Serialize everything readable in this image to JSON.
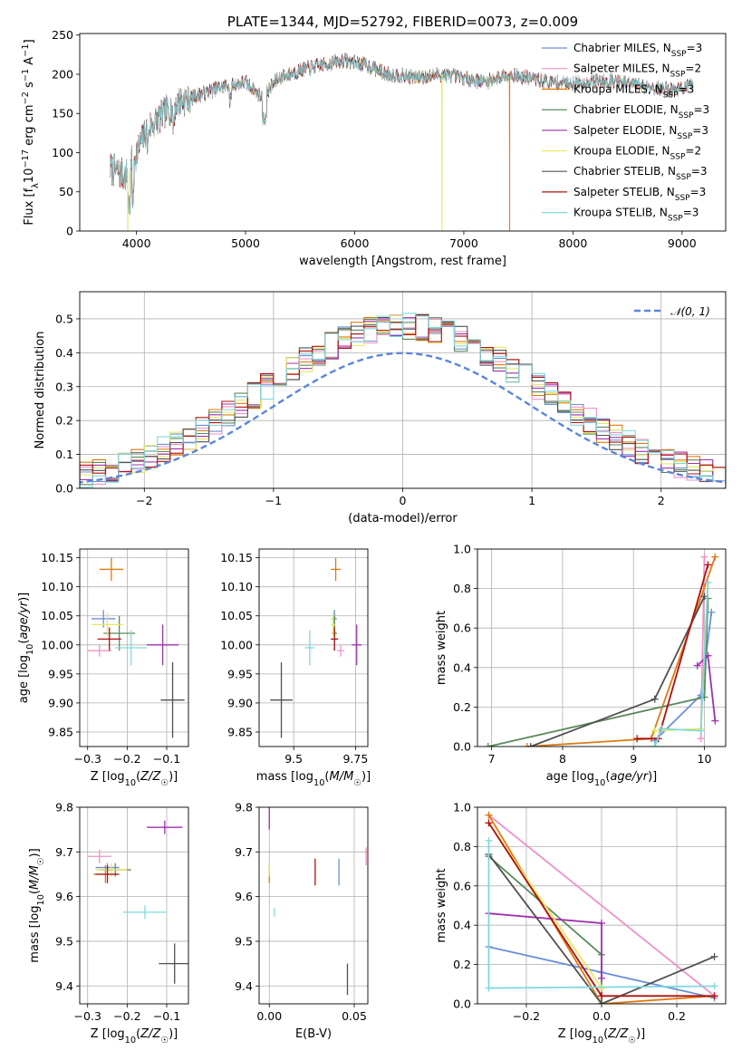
{
  "figure": {
    "title": "PLATE=1344, MJD=52792, FIBERID=0073, z=0.009"
  },
  "colors": {
    "model": [
      "#6a8fd8",
      "#f090c8",
      "#e07a10",
      "#5b8a5b",
      "#a030b0",
      "#e8e860",
      "#505050",
      "#b01010",
      "#80d8dc"
    ]
  },
  "chart_data": [
    {
      "id": "spectrum",
      "type": "line",
      "title": "PLATE=1344, MJD=52792, FIBERID=0073, z=0.009",
      "xlabel": "wavelength [Angstrom, rest frame]",
      "ylabel": "Flux [f_λ 10^-17 erg cm^-2 s^-1 A^-1]",
      "xlim": [
        3480,
        9400
      ],
      "ylim": [
        0,
        252
      ],
      "xticks": [
        4000,
        5000,
        6000,
        7000,
        8000,
        9000
      ],
      "yticks": [
        0,
        50,
        100,
        150,
        200,
        250
      ],
      "legend_position": "top-right",
      "series": [
        {
          "name": "Chabrier MILES, N_SSP=3"
        },
        {
          "name": "Salpeter MILES, N_SSP=2"
        },
        {
          "name": "Kroupa MILES, N_SSP=3"
        },
        {
          "name": "Chabrier ELODIE, N_SSP=3"
        },
        {
          "name": "Salpeter ELODIE, N_SSP=3"
        },
        {
          "name": "Kroupa ELODIE, N_SSP=2"
        },
        {
          "name": "Chabrier STELIB, N_SSP=3"
        },
        {
          "name": "Salpeter STELIB, N_SSP=3"
        },
        {
          "name": "Kroupa STELIB, N_SSP=3"
        }
      ],
      "continuum": {
        "x": [
          3760,
          3900,
          4000,
          4100,
          4250,
          4400,
          4600,
          4800,
          5000,
          5150,
          5300,
          5500,
          5700,
          5900,
          6100,
          6300,
          6560,
          6800,
          7000,
          7200,
          7400,
          7600,
          7800,
          8000,
          8300,
          8600,
          8900,
          9100
        ],
        "y": [
          80,
          70,
          100,
          130,
          150,
          165,
          175,
          185,
          190,
          170,
          195,
          205,
          212,
          218,
          212,
          200,
          196,
          200,
          195,
          190,
          200,
          195,
          190,
          188,
          192,
          186,
          180,
          185
        ]
      },
      "dropouts": [
        {
          "x": 3920,
          "series": 5
        },
        {
          "x": 6800,
          "series": 5
        },
        {
          "x": 7420,
          "series": 2
        }
      ]
    },
    {
      "id": "residuals",
      "type": "histogram",
      "xlabel": "(data-model)/error",
      "ylabel": "Normed distribution",
      "xlim": [
        -2.5,
        2.5
      ],
      "ylim": [
        0,
        0.58
      ],
      "xticks": [
        -2,
        -1,
        0,
        1,
        2
      ],
      "yticks": [
        0.0,
        0.1,
        0.2,
        0.3,
        0.4,
        0.5
      ],
      "grid": true,
      "legend_position": "top-right",
      "reference_curve": {
        "name": "N(0,1)",
        "legend_label": "𝒩(0, 1)",
        "mean": 0,
        "sigma": 1
      },
      "bin_width": 0.1
    },
    {
      "id": "age-vs-Z",
      "type": "errorbar",
      "xlabel": "Z [log10(Z/Z☉)]",
      "ylabel": "age [log10(age/yr)]",
      "xlim": [
        -0.32,
        -0.045
      ],
      "ylim": [
        9.825,
        10.165
      ],
      "xticks": [
        -0.3,
        -0.2,
        -0.1
      ],
      "yticks": [
        9.85,
        9.9,
        9.95,
        10.0,
        10.05,
        10.1,
        10.15
      ],
      "grid": true,
      "points": [
        {
          "x": -0.26,
          "y": 10.045,
          "xerr": 0.03,
          "yerr": 0.015,
          "series": 0
        },
        {
          "x": -0.27,
          "y": 9.99,
          "xerr": 0.03,
          "yerr": 0.01,
          "series": 1
        },
        {
          "x": -0.24,
          "y": 10.13,
          "xerr": 0.03,
          "yerr": 0.02,
          "series": 2
        },
        {
          "x": -0.22,
          "y": 10.02,
          "xerr": 0.04,
          "yerr": 0.03,
          "series": 3
        },
        {
          "x": -0.11,
          "y": 10.0,
          "xerr": 0.04,
          "yerr": 0.035,
          "series": 4
        },
        {
          "x": -0.25,
          "y": 10.035,
          "xerr": 0.04,
          "yerr": 0.02,
          "series": 5
        },
        {
          "x": -0.085,
          "y": 9.905,
          "xerr": 0.03,
          "yerr": 0.065,
          "series": 6
        },
        {
          "x": -0.245,
          "y": 10.01,
          "xerr": 0.03,
          "yerr": 0.02,
          "series": 7
        },
        {
          "x": -0.19,
          "y": 9.995,
          "xerr": 0.04,
          "yerr": 0.03,
          "series": 8
        }
      ]
    },
    {
      "id": "age-vs-mass",
      "type": "errorbar",
      "xlabel": "mass [log10(M/M☉)]",
      "ylabel": "",
      "xlim": [
        9.36,
        9.8
      ],
      "ylim": [
        9.825,
        10.165
      ],
      "xticks": [
        9.5,
        9.75
      ],
      "yticks": [
        9.85,
        9.9,
        9.95,
        10.0,
        10.05,
        10.1,
        10.15
      ],
      "grid": true,
      "points": [
        {
          "x": 9.665,
          "y": 10.045,
          "xerr": 0.01,
          "yerr": 0.015,
          "series": 0
        },
        {
          "x": 9.69,
          "y": 9.99,
          "xerr": 0.015,
          "yerr": 0.01,
          "series": 1
        },
        {
          "x": 9.67,
          "y": 10.13,
          "xerr": 0.02,
          "yerr": 0.02,
          "series": 2
        },
        {
          "x": 9.665,
          "y": 10.02,
          "xerr": 0.01,
          "yerr": 0.03,
          "series": 3
        },
        {
          "x": 9.755,
          "y": 10.0,
          "xerr": 0.02,
          "yerr": 0.035,
          "series": 4
        },
        {
          "x": 9.66,
          "y": 10.035,
          "xerr": 0.01,
          "yerr": 0.02,
          "series": 5
        },
        {
          "x": 9.45,
          "y": 9.905,
          "xerr": 0.045,
          "yerr": 0.065,
          "series": 6
        },
        {
          "x": 9.665,
          "y": 10.01,
          "xerr": 0.015,
          "yerr": 0.02,
          "series": 7
        },
        {
          "x": 9.565,
          "y": 9.995,
          "xerr": 0.02,
          "yerr": 0.03,
          "series": 8
        }
      ]
    },
    {
      "id": "mass-weight-vs-age",
      "type": "line",
      "xlabel": "age [log10(age/yr)]",
      "ylabel": "mass weight",
      "xlim": [
        6.8,
        10.3
      ],
      "ylim": [
        0,
        1.0
      ],
      "xticks": [
        7,
        8,
        9,
        10
      ],
      "yticks": [
        0.0,
        0.2,
        0.4,
        0.6,
        0.8,
        1.0
      ],
      "grid": true,
      "series": [
        {
          "series": 0,
          "x": [
            9.3,
            9.95,
            10.1
          ],
          "y": [
            0.03,
            0.26,
            0.68
          ]
        },
        {
          "series": 1,
          "x": [
            9.95,
            10.0
          ],
          "y": [
            0.04,
            0.96
          ]
        },
        {
          "series": 2,
          "x": [
            7.5,
            9.25,
            10.15
          ],
          "y": [
            0.0,
            0.04,
            0.96
          ]
        },
        {
          "series": 3,
          "x": [
            6.95,
            10.0,
            10.05
          ],
          "y": [
            0.0,
            0.25,
            0.75
          ]
        },
        {
          "series": 4,
          "x": [
            9.9,
            10.05,
            10.15
          ],
          "y": [
            0.41,
            0.46,
            0.13
          ]
        },
        {
          "series": 5,
          "x": [
            9.3,
            9.95,
            10.05
          ],
          "y": [
            0.08,
            0.09,
            0.83
          ]
        },
        {
          "series": 6,
          "x": [
            7.55,
            9.3,
            10.0
          ],
          "y": [
            0.0,
            0.24,
            0.76
          ]
        },
        {
          "series": 7,
          "x": [
            9.05,
            9.35,
            10.05
          ],
          "y": [
            0.04,
            0.04,
            0.92
          ]
        },
        {
          "series": 8,
          "x": [
            9.3,
            9.4,
            9.95,
            10.05
          ],
          "y": [
            0.0,
            0.09,
            0.08,
            0.83
          ]
        }
      ]
    },
    {
      "id": "mass-vs-Z",
      "type": "errorbar",
      "xlabel": "Z [log10(Z/Z☉)]",
      "ylabel": "mass [log10(M/M☉)]",
      "xlim": [
        -0.32,
        -0.045
      ],
      "ylim": [
        9.36,
        9.8
      ],
      "xticks": [
        -0.3,
        -0.2,
        -0.1
      ],
      "yticks": [
        9.4,
        9.5,
        9.6,
        9.7,
        9.8
      ],
      "grid": true,
      "points": [
        {
          "x": -0.25,
          "y": 9.665,
          "xerr": 0.03,
          "yerr": 0.01,
          "series": 0
        },
        {
          "x": -0.27,
          "y": 9.69,
          "xerr": 0.03,
          "yerr": 0.015,
          "series": 1
        },
        {
          "x": -0.255,
          "y": 9.65,
          "xerr": 0.03,
          "yerr": 0.02,
          "series": 2
        },
        {
          "x": -0.23,
          "y": 9.66,
          "xerr": 0.04,
          "yerr": 0.015,
          "series": 3
        },
        {
          "x": -0.105,
          "y": 9.755,
          "xerr": 0.045,
          "yerr": 0.015,
          "series": 4
        },
        {
          "x": -0.24,
          "y": 9.66,
          "xerr": 0.04,
          "yerr": 0.015,
          "series": 5
        },
        {
          "x": -0.08,
          "y": 9.45,
          "xerr": 0.04,
          "yerr": 0.045,
          "series": 6
        },
        {
          "x": -0.25,
          "y": 9.65,
          "xerr": 0.03,
          "yerr": 0.02,
          "series": 7
        },
        {
          "x": -0.155,
          "y": 9.565,
          "xerr": 0.055,
          "yerr": 0.015,
          "series": 8
        }
      ]
    },
    {
      "id": "mass-vs-EBV",
      "type": "errorbar",
      "xlabel": "E(B-V)",
      "ylabel": "",
      "xlim": [
        -0.006,
        0.058
      ],
      "ylim": [
        9.36,
        9.8
      ],
      "xticks": [
        0.0,
        0.05
      ],
      "yticks": [
        9.4,
        9.5,
        9.6,
        9.7,
        9.8
      ],
      "grid": true,
      "points": [
        {
          "x": 0.041,
          "y": 9.655,
          "yerr": 0.03,
          "series": 0
        },
        {
          "x": 0.057,
          "y": 9.69,
          "yerr": 0.02,
          "series": 1
        },
        {
          "x": 0.0,
          "y": 9.65,
          "yerr": 0.02,
          "series": 2
        },
        {
          "x": 0.0,
          "y": 9.66,
          "yerr": 0.015,
          "series": 3
        },
        {
          "x": 0.0,
          "y": 9.775,
          "yerr": 0.025,
          "series": 4
        },
        {
          "x": 0.0,
          "y": 9.66,
          "yerr": 0.015,
          "series": 5
        },
        {
          "x": 0.046,
          "y": 9.415,
          "yerr": 0.035,
          "series": 6
        },
        {
          "x": 0.027,
          "y": 9.655,
          "yerr": 0.03,
          "series": 7
        },
        {
          "x": 0.003,
          "y": 9.565,
          "yerr": 0.01,
          "series": 8
        }
      ]
    },
    {
      "id": "mass-weight-vs-Z",
      "type": "line",
      "xlabel": "Z [log10(Z/Z☉)]",
      "ylabel": "mass weight",
      "xlim": [
        -0.33,
        0.33
      ],
      "ylim": [
        0,
        1.0
      ],
      "xticks": [
        -0.2,
        0.0,
        0.2
      ],
      "yticks": [
        0.0,
        0.2,
        0.4,
        0.6,
        0.8,
        1.0
      ],
      "grid": true,
      "series": [
        {
          "series": 0,
          "x": [
            -0.3,
            0.0,
            0.3
          ],
          "y": [
            0.29,
            0.16,
            0.03
          ]
        },
        {
          "series": 1,
          "x": [
            -0.3,
            0.3
          ],
          "y": [
            0.96,
            0.04
          ]
        },
        {
          "series": 2,
          "x": [
            -0.3,
            0.0,
            0.3
          ],
          "y": [
            0.96,
            0.0,
            0.04
          ]
        },
        {
          "series": 3,
          "x": [
            -0.3,
            0.0,
            0.0
          ],
          "y": [
            0.75,
            0.25,
            0.0
          ]
        },
        {
          "series": 4,
          "x": [
            -0.3,
            0.0,
            0.0
          ],
          "y": [
            0.46,
            0.41,
            0.13
          ]
        },
        {
          "series": 5,
          "x": [
            -0.3,
            0.0,
            0.0
          ],
          "y": [
            0.92,
            0.08,
            0.08
          ]
        },
        {
          "series": 6,
          "x": [
            -0.3,
            0.0,
            0.3
          ],
          "y": [
            0.76,
            0.0,
            0.24
          ]
        },
        {
          "series": 7,
          "x": [
            -0.3,
            0.0,
            0.3
          ],
          "y": [
            0.92,
            0.04,
            0.04
          ]
        },
        {
          "series": 8,
          "x": [
            -0.3,
            -0.3,
            0.3
          ],
          "y": [
            0.83,
            0.08,
            0.09
          ]
        }
      ]
    }
  ]
}
